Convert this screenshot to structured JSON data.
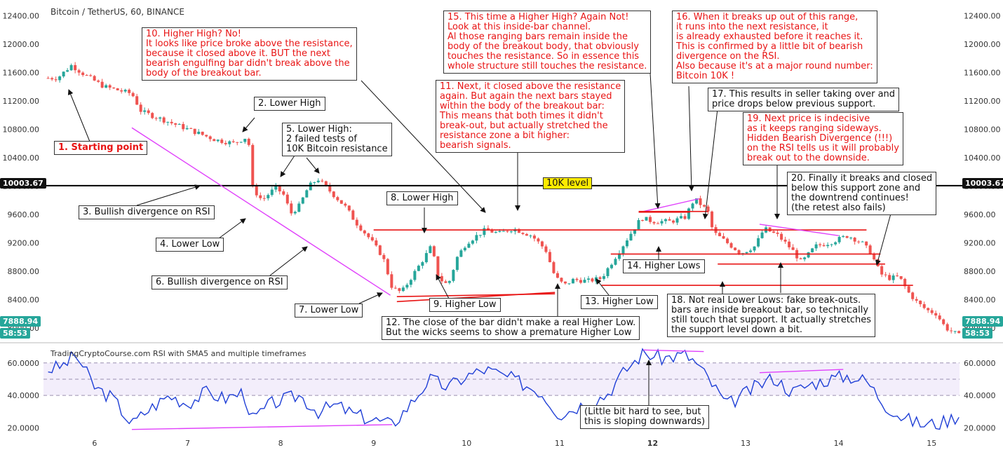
{
  "header": {
    "symbol": "Bitcoin / TetherUS, 60, BINANCE"
  },
  "rsi_title": "TradingCryptoCourse.com RSI with SMA5 and multiple timeframes",
  "level_label": "10K level",
  "badges": {
    "level_price": "10003.67",
    "last_price": "7888.94",
    "countdown": "58:53"
  },
  "colors": {
    "up": "#26a69a",
    "down": "#ef5350",
    "resistance": "#e81414",
    "trend": "#e040fb",
    "rsi": "#1f3fd6",
    "annotation_red": "#e81414"
  },
  "annotations": [
    {
      "id": "a1",
      "text": "1. Starting point",
      "style": "red bold"
    },
    {
      "id": "a2",
      "text": "2. Lower High",
      "style": ""
    },
    {
      "id": "a3",
      "text": "3. Bullish divergence on RSI",
      "style": ""
    },
    {
      "id": "a4",
      "text": "4. Lower Low",
      "style": ""
    },
    {
      "id": "a5",
      "text": "5. Lower High:\n2 failed tests of\n10K Bitcoin resistance",
      "style": ""
    },
    {
      "id": "a6",
      "text": "6. Bullish divergence on RSI",
      "style": ""
    },
    {
      "id": "a7",
      "text": "7. Lower Low",
      "style": ""
    },
    {
      "id": "a8",
      "text": "8. Lower High",
      "style": ""
    },
    {
      "id": "a9",
      "text": "9. Higher Low",
      "style": ""
    },
    {
      "id": "a10",
      "text": "10. Higher High? No!\nIt looks like price broke above the resistance,\nbecause it closed above it. BUT the next\nbearish engulfing bar didn't break above the\nbody of the breakout bar.",
      "style": "red"
    },
    {
      "id": "a11",
      "text": "11. Next, it closed above the resistance\nagain. But again the next bars stayed\nwithin the body of the breakout bar:\nThis means that both times it didn't\nbreak-out, but actually stretched the\nresistance zone a bit higher:\nbearish signals.",
      "style": "red"
    },
    {
      "id": "a12",
      "text": "12. The close of the bar didn't make a real Higher Low.\nBut the wicks seems to show a premature Higher Low",
      "style": ""
    },
    {
      "id": "a13",
      "text": "13. Higher Low",
      "style": ""
    },
    {
      "id": "a14",
      "text": "14. Higher Lows",
      "style": ""
    },
    {
      "id": "a15",
      "text": "15. This time a Higher High? Again Not!\nLook at this inside-bar channel.\nAl those ranging bars remain inside the\nbody of the breakout body, that obviously\ntouches the resistance. So in essence this\nwhole structure still touches the resistance.",
      "style": "red"
    },
    {
      "id": "a16",
      "text": "16. When it breaks up out of this range,\nit runs into the next  resistance, it\nis already exhausted before it reaches it.\nThis is confirmed by a little bit of bearish\ndivergence on the RSI.\nAlso because it's at a major round number:\nBitcoin 10K !",
      "style": "red"
    },
    {
      "id": "a17",
      "text": "17. This results in seller taking over and\nprice drops below previous support.",
      "style": ""
    },
    {
      "id": "a18",
      "text": "18. Not real Lower Lows: fake break-outs.\nbars are inside breakout bar, so technically\nstill touch that support. It actually stretches\nthe support level down a bit.",
      "style": ""
    },
    {
      "id": "a19",
      "text": "19. Next price is indecisive\nas it keeps ranging sideways.\nHidden Bearish Divergence (!!!)\non the RSI tells us it will probably\nbreak out to the downside.",
      "style": "red"
    },
    {
      "id": "a20",
      "text": "20. Finally it breaks and closed\nbelow this support zone and\nthe downtrend continues!\n(the retest also fails)",
      "style": ""
    },
    {
      "id": "a21",
      "text": "(Little bit hard to see, but\nthis is sloping downwards)",
      "style": ""
    }
  ],
  "chart_data": {
    "type": "candlestick",
    "price_axis": {
      "ylim": [
        7820,
        12620
      ],
      "ticks": [
        8000,
        8400,
        8800,
        9200,
        9600,
        10000,
        10400,
        10800,
        11200,
        11600,
        12000,
        12400
      ],
      "tick_labels": [
        "8000.00",
        "8400.00",
        "8800.00",
        "9200.00",
        "9600.00",
        "10000.00",
        "10400.00",
        "10800.00",
        "11200.00",
        "11600.00",
        "12000.00",
        "12400.00"
      ]
    },
    "rsi_axis": {
      "ylim": [
        15,
        72
      ],
      "ticks": [
        20,
        40,
        60
      ],
      "tick_labels": [
        "20.0000",
        "40.0000",
        "60.0000"
      ],
      "band": [
        40,
        60
      ],
      "midline": 50
    },
    "x_axis": {
      "xlim": [
        5.45,
        15.3
      ],
      "ticks": [
        6,
        7,
        8,
        9,
        10,
        11,
        12,
        13,
        14,
        15
      ],
      "tick_labels": [
        "6",
        "7",
        "8",
        "9",
        "10",
        "11",
        "12",
        "13",
        "14",
        "15"
      ]
    },
    "levels": [
      {
        "name": "10K level",
        "price": 10003.67
      }
    ],
    "price_path": [
      [
        5.5,
        11520
      ],
      [
        5.6,
        11520
      ],
      [
        5.75,
        11700
      ],
      [
        5.9,
        11560
      ],
      [
        6.1,
        11400
      ],
      [
        6.4,
        11300
      ],
      [
        6.5,
        11050
      ],
      [
        6.7,
        10950
      ],
      [
        7.0,
        10800
      ],
      [
        7.3,
        10650
      ],
      [
        7.5,
        10600
      ],
      [
        7.65,
        10700
      ],
      [
        7.7,
        9960
      ],
      [
        7.8,
        9800
      ],
      [
        7.95,
        9980
      ],
      [
        8.05,
        9850
      ],
      [
        8.1,
        9600
      ],
      [
        8.2,
        9720
      ],
      [
        8.3,
        9990
      ],
      [
        8.4,
        10100
      ],
      [
        8.55,
        9900
      ],
      [
        8.7,
        9700
      ],
      [
        8.8,
        9500
      ],
      [
        8.95,
        9270
      ],
      [
        9.1,
        9000
      ],
      [
        9.2,
        8560
      ],
      [
        9.3,
        8500
      ],
      [
        9.45,
        8800
      ],
      [
        9.55,
        9000
      ],
      [
        9.62,
        9150
      ],
      [
        9.7,
        8700
      ],
      [
        9.8,
        8600
      ],
      [
        9.9,
        9000
      ],
      [
        10.0,
        9200
      ],
      [
        10.2,
        9380
      ],
      [
        10.35,
        9330
      ],
      [
        10.5,
        9400
      ],
      [
        10.7,
        9300
      ],
      [
        10.85,
        9100
      ],
      [
        10.95,
        8720
      ],
      [
        11.05,
        8600
      ],
      [
        11.15,
        8680
      ],
      [
        11.3,
        8660
      ],
      [
        11.45,
        8700
      ],
      [
        11.55,
        8900
      ],
      [
        11.7,
        9200
      ],
      [
        11.8,
        9400
      ],
      [
        11.88,
        9550
      ],
      [
        12.0,
        9500
      ],
      [
        12.2,
        9500
      ],
      [
        12.35,
        9560
      ],
      [
        12.45,
        9820
      ],
      [
        12.55,
        9700
      ],
      [
        12.6,
        9620
      ],
      [
        12.65,
        9350
      ],
      [
        12.8,
        9200
      ],
      [
        12.95,
        9050
      ],
      [
        13.1,
        9150
      ],
      [
        13.2,
        9400
      ],
      [
        13.35,
        9300
      ],
      [
        13.5,
        9100
      ],
      [
        13.6,
        8920
      ],
      [
        13.75,
        9150
      ],
      [
        13.9,
        9200
      ],
      [
        14.1,
        9300
      ],
      [
        14.25,
        9200
      ],
      [
        14.35,
        9050
      ],
      [
        14.45,
        8760
      ],
      [
        14.55,
        8700
      ],
      [
        14.65,
        8720
      ],
      [
        14.75,
        8500
      ],
      [
        14.85,
        8350
      ],
      [
        14.95,
        8250
      ],
      [
        15.05,
        8200
      ],
      [
        15.15,
        8000
      ],
      [
        15.22,
        7950
      ],
      [
        15.3,
        7889
      ]
    ],
    "rsi_path": [
      [
        5.5,
        56
      ],
      [
        5.65,
        58
      ],
      [
        5.8,
        65
      ],
      [
        6.0,
        45
      ],
      [
        6.2,
        38
      ],
      [
        6.4,
        22
      ],
      [
        6.55,
        30
      ],
      [
        6.8,
        40
      ],
      [
        7.0,
        35
      ],
      [
        7.2,
        42
      ],
      [
        7.4,
        38
      ],
      [
        7.6,
        42
      ],
      [
        7.7,
        25
      ],
      [
        7.9,
        35
      ],
      [
        8.2,
        40
      ],
      [
        8.4,
        30
      ],
      [
        8.6,
        34
      ],
      [
        8.8,
        28
      ],
      [
        9.0,
        25
      ],
      [
        9.2,
        22
      ],
      [
        9.4,
        35
      ],
      [
        9.6,
        50
      ],
      [
        9.8,
        45
      ],
      [
        10.0,
        52
      ],
      [
        10.2,
        56
      ],
      [
        10.5,
        50
      ],
      [
        10.8,
        42
      ],
      [
        11.0,
        28
      ],
      [
        11.3,
        36
      ],
      [
        11.5,
        40
      ],
      [
        11.7,
        55
      ],
      [
        11.9,
        66
      ],
      [
        12.1,
        63
      ],
      [
        12.35,
        65
      ],
      [
        12.45,
        61
      ],
      [
        12.6,
        50
      ],
      [
        12.8,
        34
      ],
      [
        13.1,
        45
      ],
      [
        13.3,
        51
      ],
      [
        13.5,
        42
      ],
      [
        13.7,
        47
      ],
      [
        13.9,
        50
      ],
      [
        14.1,
        52
      ],
      [
        14.3,
        49
      ],
      [
        14.5,
        34
      ],
      [
        14.7,
        26
      ],
      [
        14.9,
        22
      ],
      [
        15.1,
        23
      ],
      [
        15.3,
        28
      ]
    ]
  }
}
